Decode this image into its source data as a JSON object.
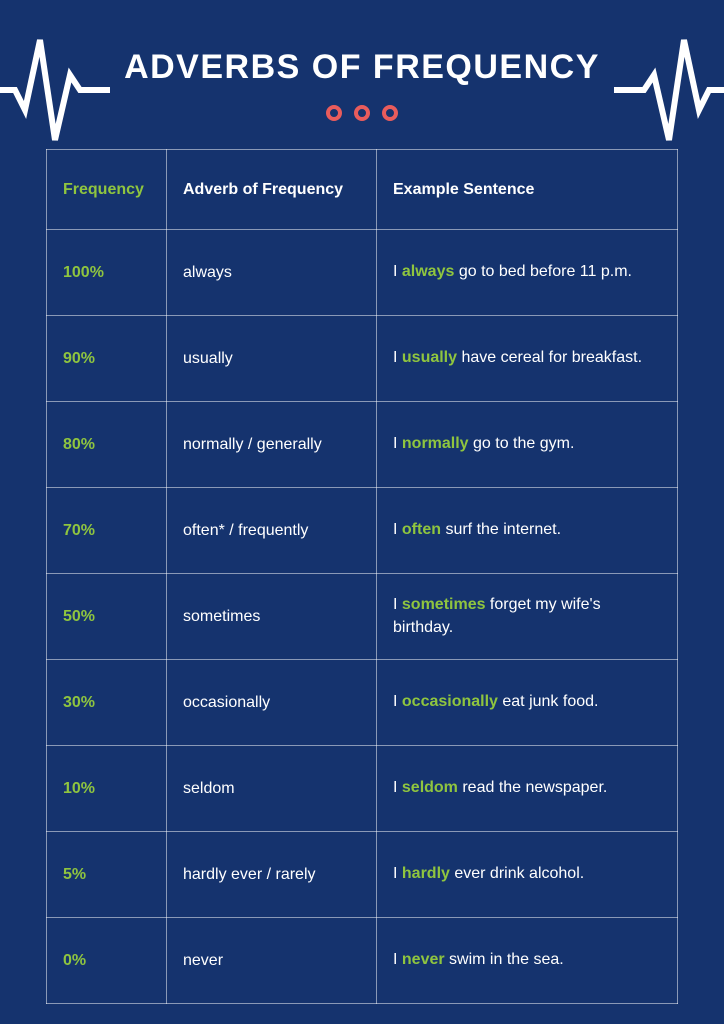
{
  "title": "ADVERBS OF FREQUENCY",
  "colors": {
    "background": "#15336e",
    "accent_green": "#8fc53f",
    "accent_red": "#e95c5c",
    "text": "#ffffff",
    "border": "rgba(255,255,255,0.5)"
  },
  "table": {
    "headers": {
      "frequency": "Frequency",
      "adverb": "Adverb of Frequency",
      "example": "Example Sentence"
    },
    "rows": [
      {
        "frequency": "100%",
        "adverb": "always",
        "example_pre": "I ",
        "example_hl": "always",
        "example_post": " go to bed before 11 p.m."
      },
      {
        "frequency": "90%",
        "adverb": "usually",
        "example_pre": "I ",
        "example_hl": "usually",
        "example_post": " have cereal for breakfast."
      },
      {
        "frequency": "80%",
        "adverb": "normally / generally",
        "example_pre": "I ",
        "example_hl": "normally",
        "example_post": " go to the gym."
      },
      {
        "frequency": "70%",
        "adverb": "often* / frequently",
        "example_pre": "I ",
        "example_hl": "often",
        "example_post": " surf the internet."
      },
      {
        "frequency": "50%",
        "adverb": "sometimes",
        "example_pre": "I ",
        "example_hl": "sometimes",
        "example_post": " forget my wife's birthday."
      },
      {
        "frequency": "30%",
        "adverb": "occasionally",
        "example_pre": "I ",
        "example_hl": "occasionally",
        "example_post": " eat junk food."
      },
      {
        "frequency": "10%",
        "adverb": "seldom",
        "example_pre": "I ",
        "example_hl": "seldom",
        "example_post": " read the newspaper."
      },
      {
        "frequency": "5%",
        "adverb": "hardly ever / rarely",
        "example_pre": "I ",
        "example_hl": "hardly",
        "example_post": " ever drink alcohol."
      },
      {
        "frequency": "0%",
        "adverb": "never",
        "example_pre": "I ",
        "example_hl": "never",
        "example_post": " swim in the sea."
      }
    ]
  }
}
